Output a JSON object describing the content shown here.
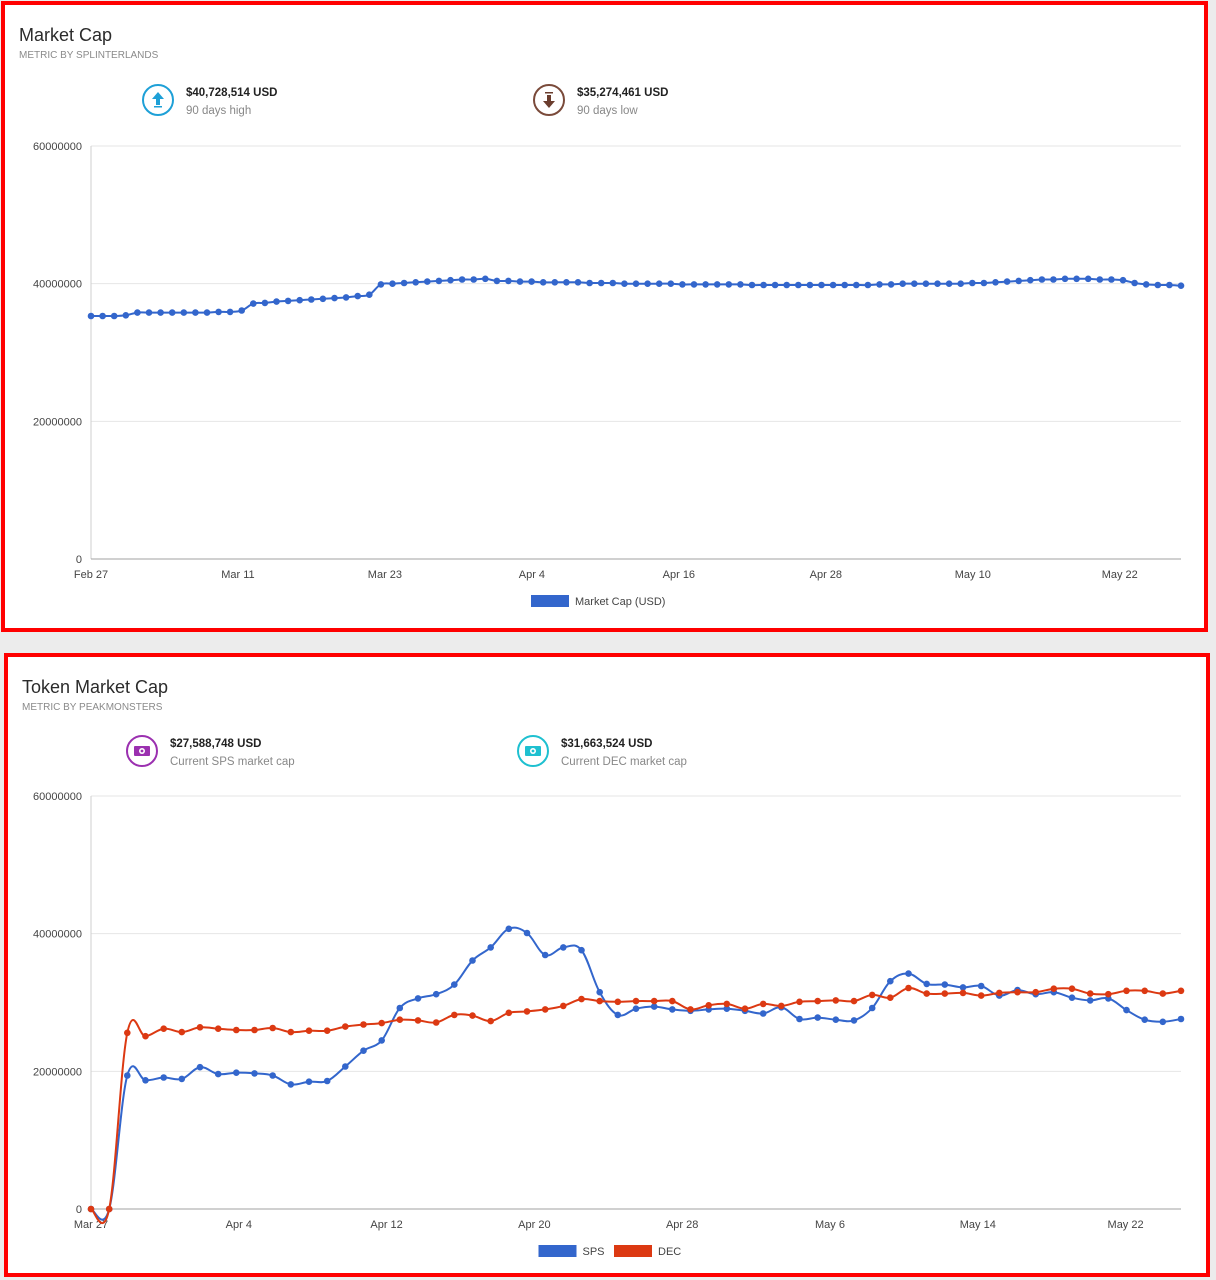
{
  "panels": [
    {
      "title": "Market Cap",
      "subtitle": "METRIC BY SPLINTERLANDS",
      "stats": [
        {
          "value": "$40,728,514 USD",
          "label": "90 days high",
          "icon": "arrow-up-icon",
          "color": "#1ea0d7"
        },
        {
          "value": "$35,274,461 USD",
          "label": "90 days low",
          "icon": "arrow-down-icon",
          "color": "#7a4a3a"
        }
      ]
    },
    {
      "title": "Token Market Cap",
      "subtitle": "METRIC BY PEAKMONSTERS",
      "stats": [
        {
          "value": "$27,588,748 USD",
          "label": "Current SPS market cap",
          "icon": "money-icon",
          "color": "#9b30b0"
        },
        {
          "value": "$31,663,524 USD",
          "label": "Current DEC market cap",
          "icon": "money-icon",
          "color": "#1ec0d0"
        }
      ]
    }
  ],
  "chart_data": [
    {
      "type": "line",
      "title": "Market Cap",
      "ylim": [
        0,
        60000000
      ],
      "yticks": [
        "0",
        "20000000",
        "40000000",
        "60000000"
      ],
      "xticks": [
        "Feb 27",
        "Mar 11",
        "Mar 23",
        "Apr 4",
        "Apr 16",
        "Apr 28",
        "May 10",
        "May 22"
      ],
      "x_start": "Feb 27",
      "x_end": "May 27",
      "legend_position": "bottom",
      "series": [
        {
          "name": "Market Cap (USD)",
          "color": "#3366cc",
          "values": [
            35300000,
            35300000,
            35300000,
            35400000,
            35800000,
            35800000,
            35800000,
            35800000,
            35800000,
            35800000,
            35800000,
            35900000,
            35900000,
            36100000,
            37100000,
            37200000,
            37400000,
            37500000,
            37600000,
            37700000,
            37800000,
            37900000,
            38000000,
            38200000,
            38400000,
            39900000,
            40000000,
            40100000,
            40200000,
            40300000,
            40400000,
            40500000,
            40600000,
            40600000,
            40700000,
            40400000,
            40400000,
            40300000,
            40300000,
            40200000,
            40200000,
            40200000,
            40200000,
            40100000,
            40100000,
            40100000,
            40000000,
            40000000,
            40000000,
            40000000,
            40000000,
            39900000,
            39900000,
            39900000,
            39900000,
            39900000,
            39900000,
            39800000,
            39800000,
            39800000,
            39800000,
            39800000,
            39800000,
            39800000,
            39800000,
            39800000,
            39800000,
            39800000,
            39900000,
            39900000,
            40000000,
            40000000,
            40000000,
            40000000,
            40000000,
            40000000,
            40100000,
            40100000,
            40200000,
            40300000,
            40400000,
            40500000,
            40600000,
            40600000,
            40700000,
            40700000,
            40700000,
            40600000,
            40600000,
            40500000,
            40100000,
            39900000,
            39800000,
            39800000,
            39700000
          ]
        }
      ]
    },
    {
      "type": "line",
      "title": "Token Market Cap",
      "ylim": [
        0,
        60000000
      ],
      "yticks": [
        "0",
        "20000000",
        "40000000",
        "60000000"
      ],
      "xticks": [
        "Mar 27",
        "Apr 4",
        "Apr 12",
        "Apr 20",
        "Apr 28",
        "May 6",
        "May 14",
        "May 22"
      ],
      "x_start": "Mar 27",
      "x_end": "May 25",
      "legend_position": "bottom",
      "series": [
        {
          "name": "SPS",
          "color": "#3366cc",
          "values": [
            0,
            0,
            19400000,
            18700000,
            19100000,
            18900000,
            20600000,
            19600000,
            19800000,
            19700000,
            19400000,
            18100000,
            18500000,
            18600000,
            20700000,
            23000000,
            24500000,
            29200000,
            30600000,
            31200000,
            32600000,
            36100000,
            38000000,
            40700000,
            40100000,
            36900000,
            38000000,
            37600000,
            31500000,
            28200000,
            29100000,
            29400000,
            29000000,
            28800000,
            29000000,
            29100000,
            28800000,
            28400000,
            29300000,
            27600000,
            27800000,
            27500000,
            27400000,
            29200000,
            33100000,
            34200000,
            32700000,
            32600000,
            32200000,
            32400000,
            31000000,
            31800000,
            31200000,
            31500000,
            30700000,
            30300000,
            30600000,
            28900000,
            27500000,
            27200000,
            27600000
          ],
          "points_shown": true
        },
        {
          "name": "DEC",
          "color": "#dc3912",
          "values": [
            0,
            0,
            25600000,
            25100000,
            26200000,
            25700000,
            26400000,
            26200000,
            26000000,
            26000000,
            26300000,
            25700000,
            25900000,
            25900000,
            26500000,
            26800000,
            27000000,
            27500000,
            27400000,
            27100000,
            28200000,
            28100000,
            27300000,
            28500000,
            28700000,
            29000000,
            29500000,
            30500000,
            30200000,
            30100000,
            30200000,
            30200000,
            30200000,
            29000000,
            29600000,
            29800000,
            29100000,
            29800000,
            29500000,
            30100000,
            30200000,
            30300000,
            30200000,
            31100000,
            30700000,
            32100000,
            31300000,
            31300000,
            31400000,
            31000000,
            31400000,
            31500000,
            31500000,
            32000000,
            32000000,
            31300000,
            31200000,
            31700000,
            31700000,
            31300000,
            31700000
          ],
          "points_shown": true
        }
      ]
    }
  ]
}
